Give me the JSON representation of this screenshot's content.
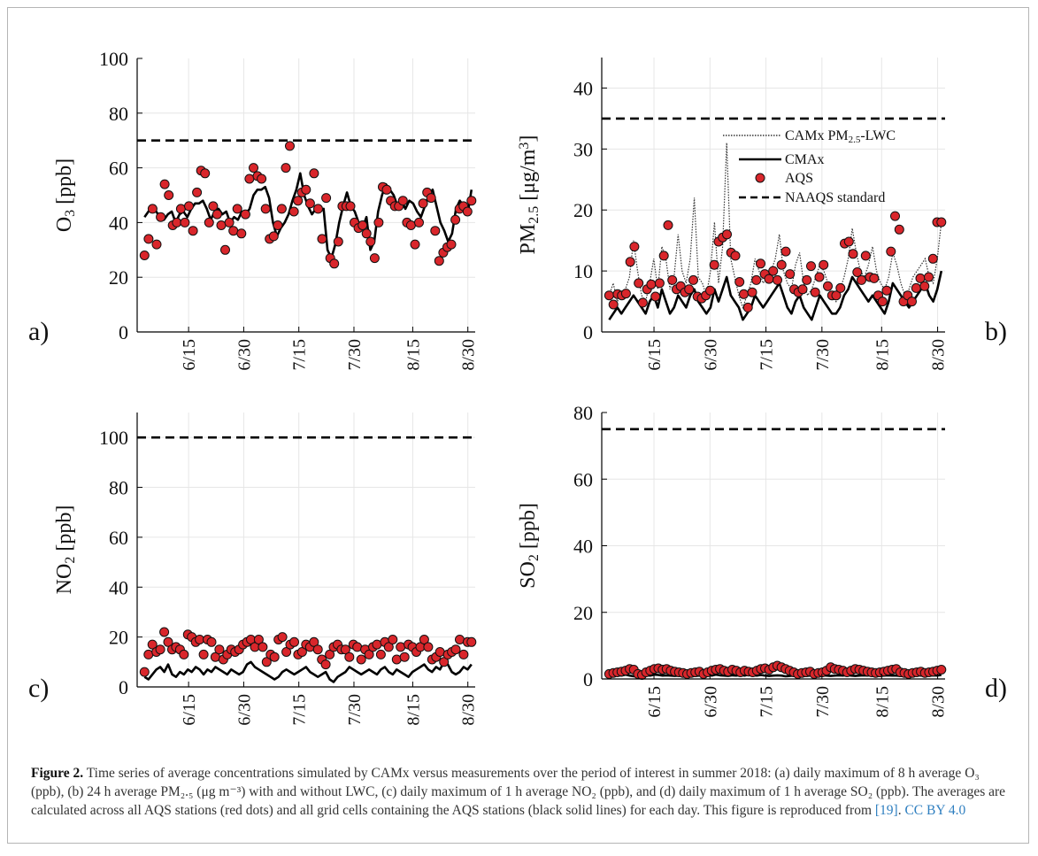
{
  "figure": {
    "panel_labels": [
      "a)",
      "b)",
      "c)",
      "d)"
    ],
    "caption": {
      "label": "Figure 2.",
      "text": "Time series of average concentrations simulated by CAMx versus measurements over the period of interest in summer 2018: (a) daily maximum of 8 h average O₃ (ppb), (b) 24 h average PM₂.₅ (μg m⁻³) with and without LWC, (c) daily maximum of 1 h average NO₂ (ppb), and (d) daily maximum of 1 h average SO₂ (ppb). The averages are calculated across all AQS stations (red dots) and all grid cells containing the AQS stations (black solid lines) for each day. This figure is reproduced from",
      "ref": "[19]",
      "license": "CC BY 4.0"
    }
  },
  "colors": {
    "aqs_fill": "#d9262b",
    "aqs_edge": "#111111",
    "line": "#000000",
    "grid": "#e6e6e6"
  },
  "chart_data": [
    {
      "type": "line",
      "panel": "a)",
      "ylabel": "O_3 [ppb]",
      "ylim": [
        0,
        100
      ],
      "yticks": [
        0,
        20,
        40,
        60,
        80,
        100
      ],
      "xlim": [
        "2018-06-01",
        "2018-09-01"
      ],
      "xticks": [
        "6/15",
        "6/30",
        "7/15",
        "7/30",
        "8/15",
        "8/30"
      ],
      "grid": true,
      "standard": 70,
      "cmax": [
        42,
        44,
        45,
        44,
        42,
        41,
        43,
        44,
        40,
        43,
        44,
        42,
        45,
        47,
        47,
        48,
        45,
        41,
        44,
        45,
        43,
        44,
        40,
        42,
        41,
        44,
        43,
        45,
        50,
        52,
        52,
        53,
        49,
        40,
        35,
        38,
        40,
        43,
        48,
        52,
        58,
        50,
        46,
        43,
        45,
        44,
        45,
        30,
        27,
        32,
        40,
        46,
        51,
        46,
        44,
        40,
        38,
        42,
        30,
        33,
        44,
        50,
        54,
        52,
        50,
        46,
        48,
        45,
        48,
        47,
        44,
        42,
        46,
        50,
        52,
        46,
        40,
        37,
        33,
        36,
        45,
        48,
        46,
        43,
        52
      ],
      "aqs": [
        28,
        34,
        45,
        32,
        42,
        54,
        50,
        39,
        40,
        45,
        40,
        46,
        37,
        51,
        59,
        58,
        40,
        46,
        43,
        39,
        30,
        40,
        37,
        45,
        36,
        43,
        56,
        60,
        57,
        56,
        45,
        34,
        35,
        39,
        45,
        60,
        68,
        44,
        48,
        51,
        52,
        47,
        58,
        45,
        34,
        49,
        27,
        25,
        33,
        46,
        46,
        46,
        40,
        38,
        39,
        36,
        33,
        27,
        40,
        53,
        52,
        48,
        46,
        46,
        48,
        40,
        39,
        32,
        40,
        47,
        51,
        49,
        37,
        26,
        29,
        31,
        32,
        41,
        45,
        46,
        44,
        48
      ]
    },
    {
      "type": "line",
      "panel": "b)",
      "ylabel": "PM_2.5 [μg/m^3]",
      "ylim": [
        0,
        45
      ],
      "yticks": [
        0,
        10,
        20,
        30,
        40
      ],
      "xlim": [
        "2018-06-01",
        "2018-09-01"
      ],
      "xticks": [
        "6/15",
        "6/30",
        "7/15",
        "7/30",
        "8/15",
        "8/30"
      ],
      "grid": true,
      "standard": 35,
      "legend": [
        "CAMx PM_2.5-LWC",
        "CMAx",
        "AQS",
        "NAAQS standard"
      ],
      "legend_position": "upper-middle",
      "lwc": [
        6,
        8,
        5,
        6,
        7,
        9,
        15,
        10,
        6,
        5,
        8,
        12,
        7,
        14,
        12,
        7,
        9,
        16,
        10,
        8,
        12,
        22,
        9,
        8,
        6,
        10,
        18,
        8,
        14,
        31,
        12,
        9,
        6,
        4,
        6,
        8,
        12,
        10,
        8,
        9,
        10,
        12,
        16,
        10,
        8,
        7,
        11,
        13,
        8,
        6,
        7,
        9,
        11,
        10,
        8,
        6,
        5,
        7,
        9,
        12,
        17,
        13,
        10,
        9,
        11,
        14,
        10,
        8,
        7,
        9,
        13,
        11,
        8,
        6,
        7,
        9,
        10,
        11,
        12,
        9,
        8,
        12,
        18
      ],
      "cmax": [
        2,
        3,
        4,
        3,
        4,
        5,
        6,
        5,
        4,
        3,
        5,
        6,
        4,
        7,
        5,
        3,
        4,
        6,
        5,
        4,
        6,
        7,
        5,
        4,
        3,
        4,
        7,
        5,
        7,
        9,
        6,
        5,
        4,
        2,
        3,
        4,
        6,
        5,
        4,
        5,
        6,
        7,
        8,
        6,
        4,
        3,
        5,
        6,
        4,
        3,
        2,
        4,
        6,
        5,
        4,
        3,
        3,
        4,
        6,
        7,
        9,
        8,
        7,
        6,
        5,
        6,
        5,
        4,
        3,
        5,
        8,
        7,
        6,
        5,
        4,
        5,
        6,
        7,
        8,
        6,
        5,
        7,
        10
      ],
      "aqs": [
        6,
        4.5,
        6.2,
        6,
        6.3,
        11.5,
        14,
        8,
        4.8,
        7,
        7.8,
        5.8,
        8,
        12.5,
        17.5,
        8.5,
        7,
        7.5,
        6.5,
        7,
        8.5,
        5.8,
        5.5,
        6,
        6.8,
        11,
        14.8,
        15.5,
        16,
        13,
        12.5,
        8.2,
        6.2,
        4,
        6.5,
        8.5,
        11.2,
        9.5,
        8.7,
        10,
        8.5,
        11,
        13.2,
        9.5,
        7,
        6.5,
        7,
        8.5,
        10.8,
        6.5,
        9,
        11,
        7.5,
        6,
        6,
        7.2,
        14.5,
        14.8,
        12.8,
        9.8,
        8.5,
        12.5,
        9,
        8.8,
        6,
        5,
        6.8,
        13.2,
        19,
        16.8,
        5,
        6,
        5,
        7.2,
        8.8,
        7.5,
        9,
        12,
        18,
        18
      ]
    },
    {
      "type": "line",
      "panel": "c)",
      "ylabel": "NO_2 [ppb]",
      "ylim": [
        0,
        110
      ],
      "yticks": [
        0,
        20,
        40,
        60,
        80,
        100
      ],
      "xlim": [
        "2018-06-01",
        "2018-09-01"
      ],
      "xticks": [
        "6/15",
        "6/30",
        "7/15",
        "7/30",
        "8/15",
        "8/30"
      ],
      "grid": true,
      "standard": 100,
      "cmax": [
        4,
        3,
        5,
        7,
        8,
        6,
        9,
        5,
        4,
        6,
        5,
        7,
        6,
        8,
        7,
        5,
        7,
        6,
        8,
        7,
        6,
        5,
        7,
        6,
        5,
        6,
        9,
        10,
        8,
        7,
        6,
        5,
        4,
        3,
        4,
        6,
        7,
        6,
        5,
        6,
        7,
        8,
        6,
        5,
        4,
        5,
        6,
        3,
        2,
        4,
        5,
        6,
        8,
        7,
        6,
        5,
        6,
        7,
        6,
        5,
        7,
        8,
        6,
        5,
        7,
        6,
        5,
        4,
        6,
        7,
        8,
        9,
        7,
        6,
        8,
        7,
        10,
        9,
        6,
        5,
        6,
        8,
        7,
        9
      ],
      "aqs": [
        6,
        13,
        17,
        14,
        15,
        22,
        18,
        15,
        16,
        15,
        13,
        21,
        20,
        18,
        19,
        13,
        19,
        18,
        12,
        15,
        11,
        13,
        15,
        14,
        15,
        17,
        18,
        19,
        16,
        19,
        16,
        10,
        13,
        12,
        19,
        20,
        14,
        17,
        18,
        13,
        14,
        17,
        16,
        18,
        15,
        11,
        9,
        13,
        16,
        17,
        15,
        15,
        12,
        17,
        16,
        11,
        15,
        13,
        16,
        17,
        13,
        18,
        16,
        19,
        11,
        16,
        12,
        17,
        16,
        14,
        16,
        19,
        16,
        11,
        12,
        14,
        10,
        13,
        14,
        15,
        19,
        13,
        18,
        18
      ]
    },
    {
      "type": "line",
      "panel": "d)",
      "ylabel": "SO_2 [ppb]",
      "ylim": [
        0,
        80
      ],
      "yticks": [
        0,
        20,
        40,
        60,
        80
      ],
      "xlim": [
        "2018-06-01",
        "2018-09-01"
      ],
      "xticks": [
        "6/15",
        "6/30",
        "7/15",
        "7/30",
        "8/15",
        "8/30"
      ],
      "grid": true,
      "standard": 75,
      "cmax": [
        1,
        1,
        1.2,
        1,
        1.3,
        1,
        0.8,
        1,
        1.2,
        1.1,
        1,
        1.3,
        1.2,
        1,
        1.1,
        1,
        0.9,
        1,
        1.1,
        1.2,
        1,
        0.9,
        1,
        1.1,
        1.2,
        1,
        1.3,
        1.1,
        1,
        0.9,
        1.1,
        1,
        1.2,
        1,
        1.3,
        1.1,
        1,
        1.2,
        1,
        0.9,
        1,
        1.1,
        1,
        0.8,
        0.9,
        1,
        1.1,
        1,
        0.9,
        1,
        1.2,
        1,
        1.1,
        1,
        0.9,
        1,
        1.1,
        1,
        1.2,
        1,
        0.9,
        1,
        1.1,
        1,
        1.2,
        1,
        0.9,
        1,
        1.1,
        1,
        1,
        0.9,
        1,
        1.1,
        1,
        1.2,
        1,
        0.9,
        1,
        1.1,
        1,
        1.2
      ],
      "aqs": [
        1.5,
        1.8,
        2,
        2.2,
        2.5,
        3,
        2.8,
        1.5,
        1.2,
        2,
        2.5,
        3,
        3.2,
        2.8,
        3,
        2.5,
        2.2,
        2,
        1.8,
        1.5,
        1.8,
        2,
        2.2,
        1.5,
        2,
        2.5,
        2.8,
        3,
        2.5,
        2.2,
        2.8,
        2.5,
        2,
        2.5,
        2.2,
        2,
        2.5,
        3,
        3.2,
        2.8,
        3.5,
        4,
        3.5,
        3,
        2.5,
        2,
        1.5,
        1.8,
        2,
        2.2,
        1.5,
        1.8,
        2,
        2.5,
        3.5,
        3,
        2.8,
        2.5,
        2,
        2.5,
        3,
        2.8,
        2.5,
        2.2,
        2,
        1.8,
        2,
        2.2,
        2.5,
        2.8,
        3,
        2,
        1.8,
        1.5,
        1.8,
        2,
        2.2,
        1.8,
        2,
        2.2,
        2.5,
        2.8
      ]
    }
  ]
}
